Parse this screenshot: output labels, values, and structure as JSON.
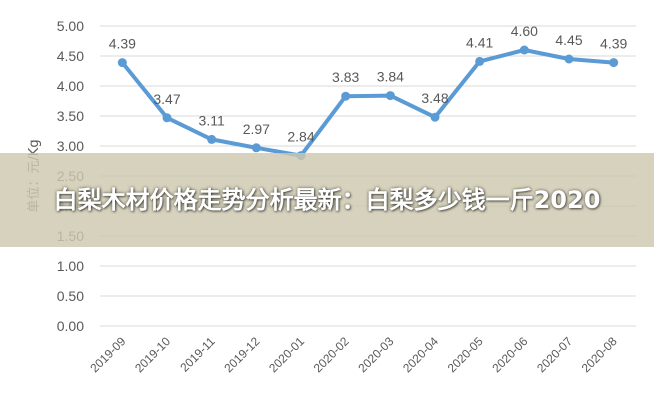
{
  "banner": {
    "title": "白梨木材价格走势分析最新：白梨多少钱一斤2020"
  },
  "chart_data": {
    "type": "line",
    "title": "",
    "xlabel": "",
    "ylabel": "单位：元/Kg",
    "categories": [
      "2019-09",
      "2019-10",
      "2019-11",
      "2019-12",
      "2020-01",
      "2020-02",
      "2020-03",
      "2020-04",
      "2020-05",
      "2020-06",
      "2020-07",
      "2020-08"
    ],
    "series": [
      {
        "values": [
          4.39,
          3.47,
          3.11,
          2.97,
          2.84,
          3.83,
          3.84,
          3.48,
          4.41,
          4.6,
          4.45,
          4.39
        ],
        "labels": [
          "4.39",
          "3.47",
          "3.11",
          "2.97",
          "2.84",
          "3.83",
          "3.84",
          "3.48",
          "4.41",
          "4.60",
          "4.45",
          "4.39"
        ],
        "color": "#5b9bd5"
      }
    ],
    "y_ticks": [
      "0.00",
      "0.50",
      "1.00",
      "1.50",
      "2.00",
      "2.50",
      "3.00",
      "3.50",
      "4.00",
      "4.50",
      "5.00"
    ],
    "ylim": [
      0,
      5
    ],
    "grid": true,
    "gridline_color": "#d9d9d9",
    "legend": "none"
  }
}
